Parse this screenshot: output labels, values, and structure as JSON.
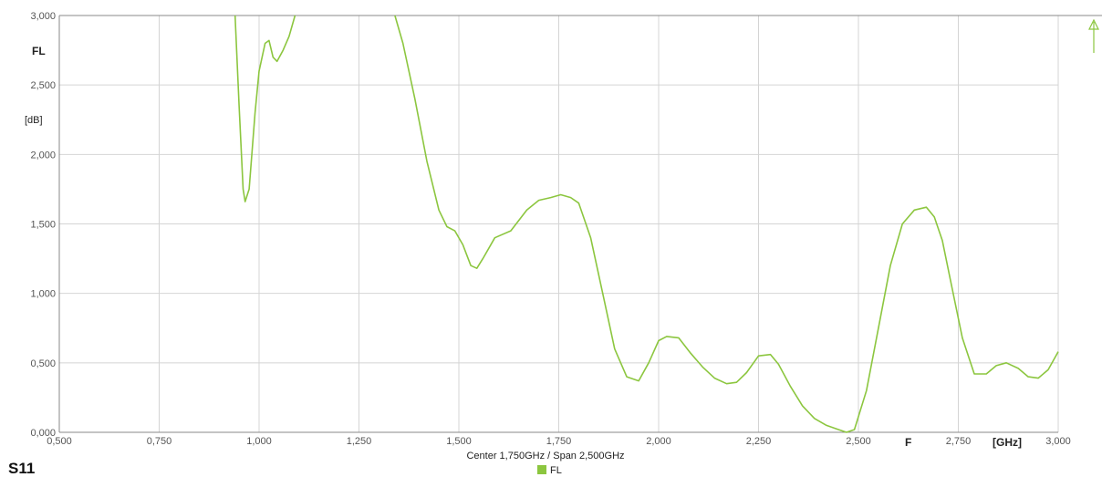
{
  "chart_data": {
    "type": "line",
    "trace_name": "S11",
    "y_title": "FL",
    "y_unit": "[dB]",
    "x_unit": "[GHz]",
    "x_marker_label": "F",
    "center_span": "Center 1,750GHz / Span 2,500GHz",
    "xlim": [
      0.5,
      3.0
    ],
    "ylim": [
      0.0,
      3.0
    ],
    "x_ticks": [
      0.5,
      0.75,
      1.0,
      1.25,
      1.5,
      1.75,
      2.0,
      2.25,
      2.5,
      2.75,
      3.0
    ],
    "x_tick_labels": [
      "0,500",
      "0,750",
      "1,000",
      "1,250",
      "1,500",
      "1,750",
      "2,000",
      "2,250",
      "2,500",
      "2,750",
      "3,000"
    ],
    "y_ticks": [
      0.0,
      0.5,
      1.0,
      1.5,
      2.0,
      2.5,
      3.0
    ],
    "y_tick_labels": [
      "0,000",
      "0,500",
      "1,000",
      "1,500",
      "2,000",
      "2,500",
      "3,000"
    ],
    "grid": true,
    "legend_position": "bottom-center",
    "series": [
      {
        "name": "FL",
        "color": "#8cc63f",
        "x": [
          0.94,
          0.95,
          0.96,
          0.965,
          0.975,
          0.99,
          1.0,
          1.015,
          1.025,
          1.035,
          1.045,
          1.06,
          1.075,
          1.09,
          1.34,
          1.36,
          1.39,
          1.42,
          1.45,
          1.47,
          1.49,
          1.51,
          1.53,
          1.545,
          1.56,
          1.59,
          1.63,
          1.67,
          1.7,
          1.73,
          1.755,
          1.78,
          1.8,
          1.83,
          1.86,
          1.89,
          1.92,
          1.95,
          1.975,
          2.0,
          2.02,
          2.05,
          2.08,
          2.11,
          2.14,
          2.17,
          2.195,
          2.22,
          2.25,
          2.28,
          2.3,
          2.33,
          2.36,
          2.39,
          2.42,
          2.45,
          2.47,
          2.49,
          2.52,
          2.55,
          2.58,
          2.61,
          2.64,
          2.67,
          2.69,
          2.71,
          2.73,
          2.76,
          2.79,
          2.82,
          2.845,
          2.87,
          2.9,
          2.925,
          2.95,
          2.975,
          3.0
        ],
        "y": [
          3.0,
          2.35,
          1.75,
          1.66,
          1.75,
          2.3,
          2.6,
          2.8,
          2.82,
          2.7,
          2.67,
          2.75,
          2.85,
          3.0,
          3.0,
          2.8,
          2.4,
          1.95,
          1.6,
          1.48,
          1.45,
          1.35,
          1.2,
          1.18,
          1.25,
          1.4,
          1.45,
          1.6,
          1.67,
          1.69,
          1.71,
          1.69,
          1.65,
          1.4,
          1.0,
          0.6,
          0.4,
          0.37,
          0.5,
          0.66,
          0.69,
          0.68,
          0.57,
          0.47,
          0.39,
          0.35,
          0.36,
          0.43,
          0.55,
          0.56,
          0.49,
          0.33,
          0.19,
          0.1,
          0.05,
          0.02,
          0.0,
          0.02,
          0.3,
          0.75,
          1.2,
          1.5,
          1.6,
          1.62,
          1.55,
          1.38,
          1.1,
          0.68,
          0.42,
          0.42,
          0.48,
          0.5,
          0.46,
          0.4,
          0.39,
          0.45,
          0.58
        ]
      }
    ]
  },
  "marker": {
    "color": "#8cc63f"
  }
}
